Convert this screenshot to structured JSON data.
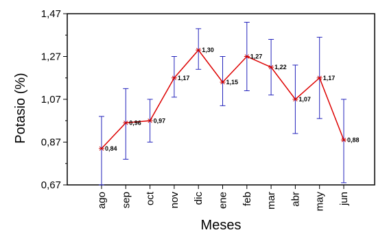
{
  "chart_data": {
    "type": "line",
    "title": "",
    "xlabel": "Meses",
    "ylabel": "Potasio (%)",
    "categories": [
      "ago",
      "sep",
      "oct",
      "nov",
      "dic",
      "ene",
      "feb",
      "mar",
      "abr",
      "may",
      "jun"
    ],
    "series": [
      {
        "values": [
          0.84,
          0.96,
          0.97,
          1.17,
          1.3,
          1.15,
          1.27,
          1.22,
          1.07,
          1.17,
          0.88
        ],
        "value_labels": [
          "0,84",
          "0,96",
          "0,97",
          "1,17",
          "1,30",
          "1,15",
          "1,27",
          "1,22",
          "1,07",
          "1,17",
          "0,88"
        ],
        "error_low": [
          0.67,
          0.79,
          0.87,
          1.08,
          1.21,
          1.04,
          1.11,
          1.09,
          0.91,
          0.98,
          0.68
        ],
        "error_high": [
          0.99,
          1.12,
          1.07,
          1.27,
          1.4,
          1.27,
          1.43,
          1.35,
          1.23,
          1.36,
          1.07
        ],
        "line_color": "#dd0000",
        "marker_color": "#cc0000",
        "error_bar_color": "#2222bb"
      }
    ],
    "yticks": [
      0.67,
      0.87,
      1.07,
      1.27,
      1.47
    ],
    "ytick_labels": [
      "0,67",
      "0,87",
      "1,07",
      "1,27",
      "1,47"
    ],
    "ylim": [
      0.67,
      1.47
    ],
    "grid": false,
    "legend": "none"
  }
}
